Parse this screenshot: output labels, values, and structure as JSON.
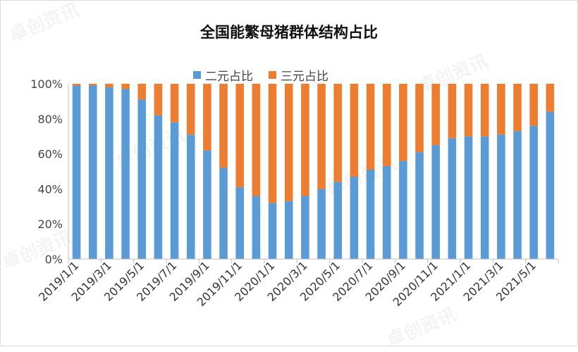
{
  "watermark": "卓创资讯",
  "chart_data": {
    "type": "bar",
    "stacked": true,
    "title": "全国能繁母猪群体结构占比",
    "xlabel": "",
    "ylabel": "",
    "ylim": [
      0,
      100
    ],
    "yticks": [
      "0%",
      "20%",
      "40%",
      "60%",
      "80%",
      "100%"
    ],
    "grid": false,
    "legend_position": "top",
    "categories": [
      "2019/1/1",
      "2019/2/1",
      "2019/3/1",
      "2019/4/1",
      "2019/5/1",
      "2019/6/1",
      "2019/7/1",
      "2019/8/1",
      "2019/9/1",
      "2019/10/1",
      "2019/11/1",
      "2019/12/1",
      "2020/1/1",
      "2020/2/1",
      "2020/3/1",
      "2020/4/1",
      "2020/5/1",
      "2020/6/1",
      "2020/7/1",
      "2020/8/1",
      "2020/9/1",
      "2020/10/1",
      "2020/11/1",
      "2020/12/1",
      "2021/1/1",
      "2021/2/1",
      "2021/3/1",
      "2021/4/1",
      "2021/5/1",
      "2021/6/1"
    ],
    "xtick_labels": [
      "2019/1/1",
      "2019/3/1",
      "2019/5/1",
      "2019/7/1",
      "2019/9/1",
      "2019/11/1",
      "2020/1/1",
      "2020/3/1",
      "2020/5/1",
      "2020/7/1",
      "2020/9/1",
      "2020/11/1",
      "2021/1/1",
      "2021/3/1",
      "2021/5/1"
    ],
    "series": [
      {
        "name": "二元占比",
        "color": "#5b9bd5",
        "values": [
          99,
          99,
          98,
          97,
          91,
          82,
          78,
          71,
          62,
          52,
          41,
          36,
          32,
          33,
          36,
          40,
          44,
          47,
          51,
          53,
          56,
          61,
          65,
          69,
          70,
          70,
          71,
          73,
          76,
          84
        ]
      },
      {
        "name": "三元占比",
        "color": "#ed7d31",
        "values": [
          1,
          1,
          2,
          3,
          9,
          18,
          22,
          29,
          38,
          48,
          59,
          64,
          68,
          67,
          64,
          60,
          56,
          53,
          49,
          47,
          44,
          39,
          35,
          31,
          30,
          30,
          29,
          27,
          24,
          16
        ]
      }
    ]
  }
}
